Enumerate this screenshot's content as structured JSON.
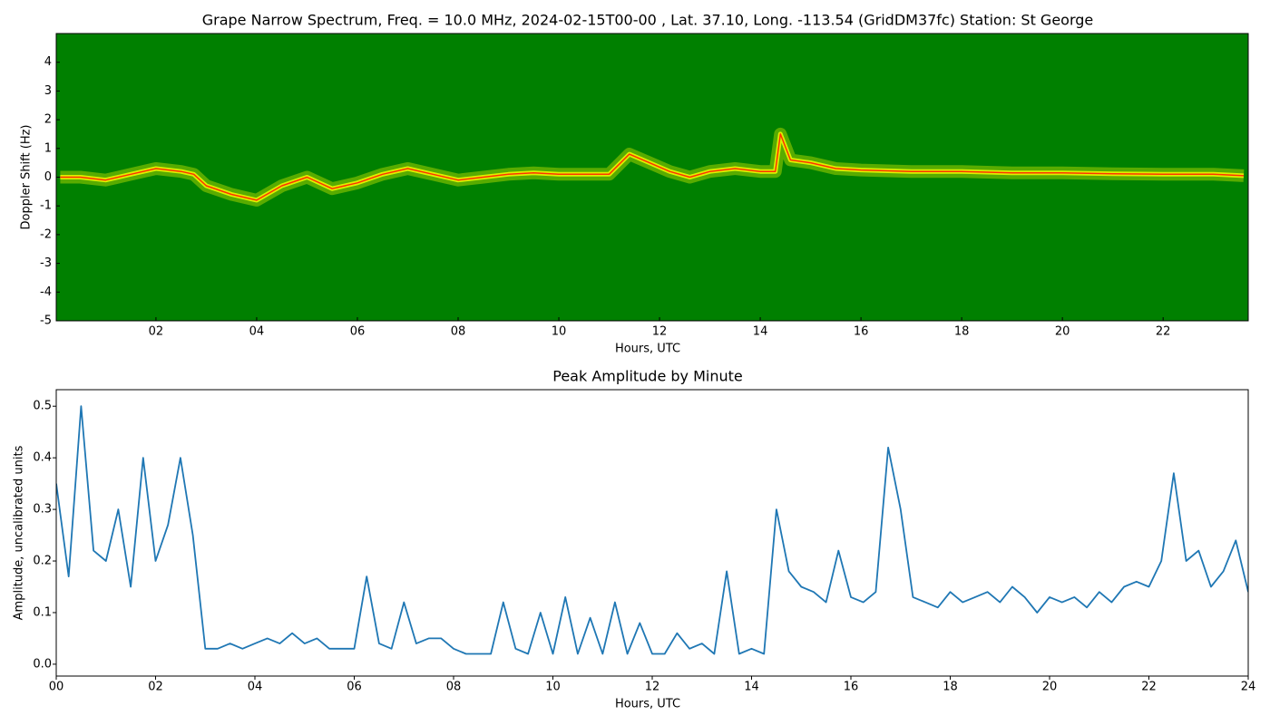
{
  "chart_data": [
    {
      "type": "spectrogram",
      "title": "Grape Narrow Spectrum, Freq. = 10.0 MHz, 2024-02-15T00-00 , Lat.  37.10, Long. -113.54 (GridDM37fc) Station: St George",
      "xlabel": "Hours, UTC",
      "ylabel": "Doppler Shift (Hz)",
      "background_color": "#008000",
      "glow_color": "#ffff00",
      "color": "#ff3300",
      "x": [
        0.1,
        0.5,
        1,
        1.5,
        2,
        2.5,
        2.75,
        3,
        3.5,
        4,
        4.5,
        5,
        5.5,
        6,
        6.5,
        7,
        7.5,
        8,
        8.5,
        9,
        9.5,
        10,
        10.5,
        11,
        11.4,
        11.8,
        12.2,
        12.6,
        13,
        13.5,
        14,
        14.3,
        14.4,
        14.6,
        15,
        15.5,
        16,
        17,
        18,
        19,
        20,
        21,
        22,
        23,
        23.6
      ],
      "values": [
        0,
        0,
        -0.1,
        0.1,
        0.3,
        0.2,
        0.1,
        -0.3,
        -0.6,
        -0.8,
        -0.3,
        0,
        -0.4,
        -0.2,
        0.1,
        0.3,
        0.1,
        -0.1,
        0,
        0.1,
        0.15,
        0.1,
        0.1,
        0.1,
        0.8,
        0.5,
        0.2,
        0,
        0.2,
        0.3,
        0.2,
        0.2,
        1.5,
        0.6,
        0.5,
        0.3,
        0.25,
        0.2,
        0.2,
        0.15,
        0.15,
        0.12,
        0.1,
        0.1,
        0.05
      ],
      "xlim": [
        0.02,
        23.69
      ],
      "xticks": [
        {
          "value": 2,
          "label": "02"
        },
        {
          "value": 4,
          "label": "04"
        },
        {
          "value": 6,
          "label": "06"
        },
        {
          "value": 8,
          "label": "08"
        },
        {
          "value": 10,
          "label": "10"
        },
        {
          "value": 12,
          "label": "12"
        },
        {
          "value": 14,
          "label": "14"
        },
        {
          "value": 16,
          "label": "16"
        },
        {
          "value": 18,
          "label": "18"
        },
        {
          "value": 20,
          "label": "20"
        },
        {
          "value": 22,
          "label": "22"
        }
      ],
      "ylim": [
        -5,
        5
      ],
      "yticks": [
        -5,
        -4,
        -3,
        -2,
        -1,
        0,
        1,
        2,
        3,
        4
      ]
    },
    {
      "type": "line",
      "title": "Peak Amplitude by Minute",
      "xlabel": "Hours, UTC",
      "ylabel": "Amplitude, uncalibrated units",
      "color": "#1f77b4",
      "x": [
        0,
        0.25,
        0.5,
        0.75,
        1,
        1.25,
        1.5,
        1.75,
        2,
        2.25,
        2.5,
        2.75,
        3,
        3.25,
        3.5,
        3.75,
        4,
        4.25,
        4.5,
        4.75,
        5,
        5.25,
        5.5,
        5.75,
        6,
        6.25,
        6.5,
        6.75,
        7,
        7.25,
        7.5,
        7.75,
        8,
        8.25,
        8.5,
        8.75,
        9,
        9.25,
        9.5,
        9.75,
        10,
        10.25,
        10.5,
        10.75,
        11,
        11.25,
        11.5,
        11.75,
        12,
        12.25,
        12.5,
        12.75,
        13,
        13.25,
        13.5,
        13.75,
        14,
        14.25,
        14.5,
        14.75,
        15,
        15.25,
        15.5,
        15.75,
        16,
        16.25,
        16.5,
        16.75,
        17,
        17.25,
        17.5,
        17.75,
        18,
        18.25,
        18.5,
        18.75,
        19,
        19.25,
        19.5,
        19.75,
        20,
        20.25,
        20.5,
        20.75,
        21,
        21.25,
        21.5,
        21.75,
        22,
        22.25,
        22.5,
        22.75,
        23,
        23.25,
        23.5,
        23.75,
        24
      ],
      "values": [
        0.35,
        0.17,
        0.5,
        0.22,
        0.2,
        0.3,
        0.15,
        0.4,
        0.2,
        0.27,
        0.4,
        0.25,
        0.03,
        0.03,
        0.04,
        0.03,
        0.04,
        0.05,
        0.04,
        0.06,
        0.04,
        0.05,
        0.03,
        0.03,
        0.03,
        0.17,
        0.04,
        0.03,
        0.12,
        0.04,
        0.05,
        0.05,
        0.03,
        0.02,
        0.02,
        0.02,
        0.12,
        0.03,
        0.02,
        0.1,
        0.02,
        0.13,
        0.02,
        0.09,
        0.02,
        0.12,
        0.02,
        0.08,
        0.02,
        0.02,
        0.06,
        0.03,
        0.04,
        0.02,
        0.18,
        0.02,
        0.03,
        0.02,
        0.3,
        0.18,
        0.15,
        0.14,
        0.12,
        0.22,
        0.13,
        0.12,
        0.14,
        0.42,
        0.3,
        0.13,
        0.12,
        0.11,
        0.14,
        0.12,
        0.13,
        0.14,
        0.12,
        0.15,
        0.13,
        0.1,
        0.13,
        0.12,
        0.13,
        0.11,
        0.14,
        0.12,
        0.15,
        0.16,
        0.15,
        0.2,
        0.37,
        0.2,
        0.22,
        0.15,
        0.18,
        0.24,
        0.14
      ],
      "xlim": [
        0,
        24
      ],
      "xticks": [
        {
          "value": 0,
          "label": "00"
        },
        {
          "value": 2,
          "label": "02"
        },
        {
          "value": 4,
          "label": "04"
        },
        {
          "value": 6,
          "label": "06"
        },
        {
          "value": 8,
          "label": "08"
        },
        {
          "value": 10,
          "label": "10"
        },
        {
          "value": 12,
          "label": "12"
        },
        {
          "value": 14,
          "label": "14"
        },
        {
          "value": 16,
          "label": "16"
        },
        {
          "value": 18,
          "label": "18"
        },
        {
          "value": 20,
          "label": "20"
        },
        {
          "value": 22,
          "label": "22"
        },
        {
          "value": 24,
          "label": "24"
        }
      ],
      "ylim": [
        -0.023,
        0.532
      ],
      "yticks": [
        {
          "value": 0,
          "label": "0.0"
        },
        0.1,
        0.2,
        0.3,
        0.4,
        0.5
      ]
    }
  ]
}
